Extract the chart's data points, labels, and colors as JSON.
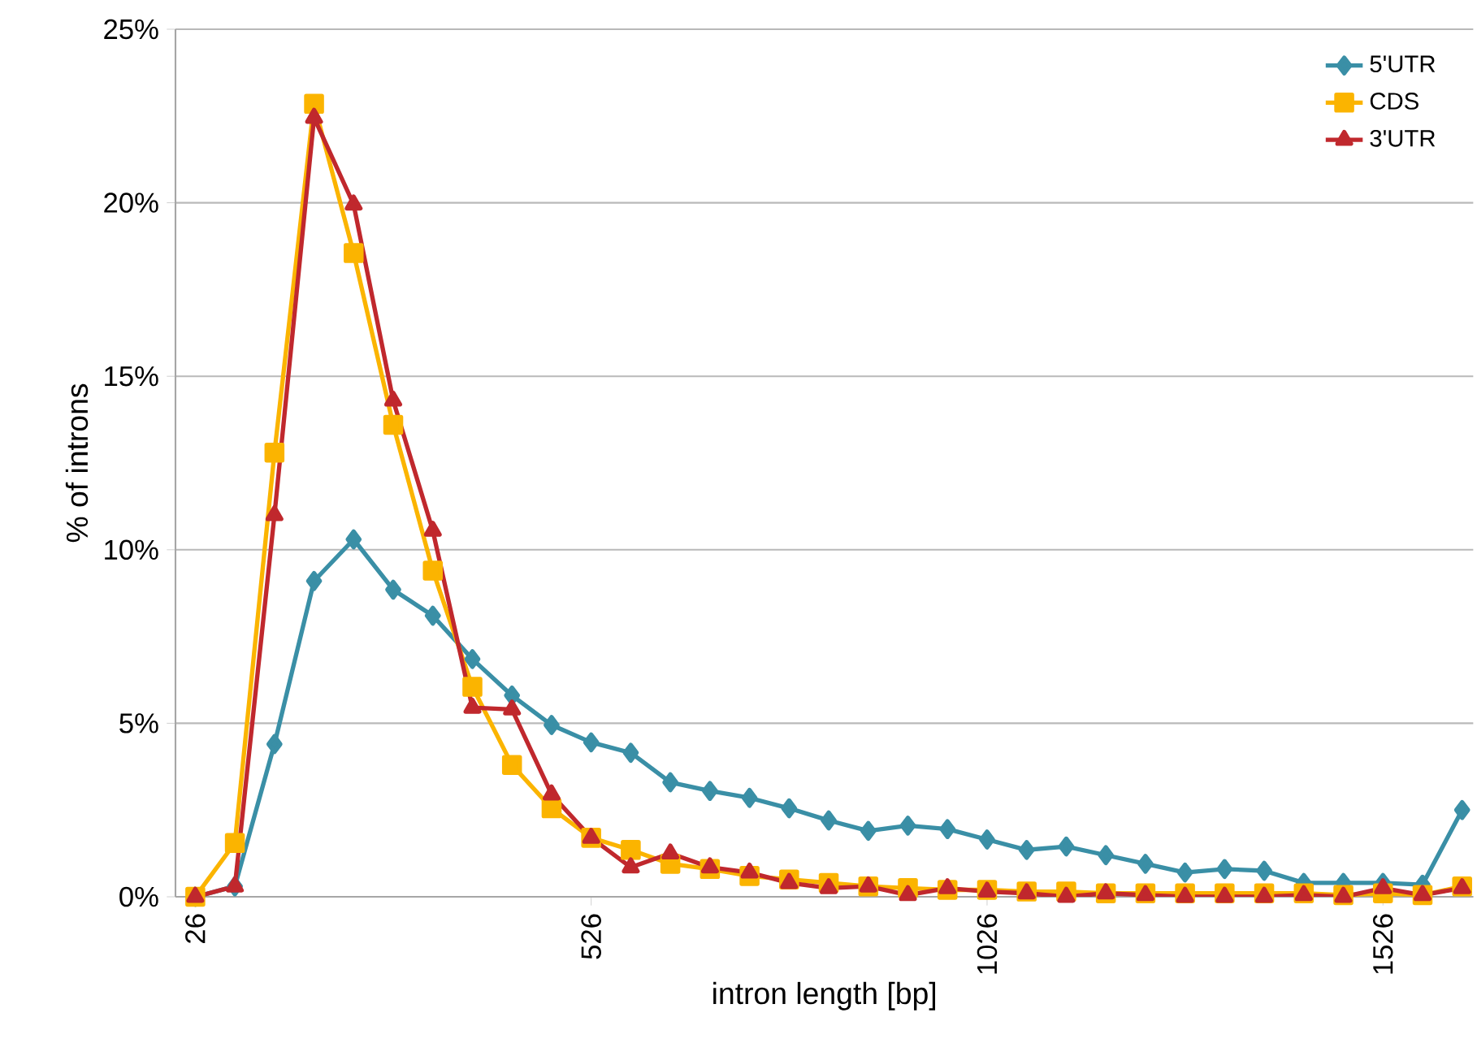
{
  "chart_data": {
    "type": "line",
    "xlabel": "intron length [bp]",
    "ylabel": "% of introns",
    "x": [
      26,
      76,
      126,
      176,
      226,
      276,
      326,
      376,
      426,
      476,
      526,
      576,
      626,
      676,
      726,
      776,
      826,
      876,
      926,
      976,
      1026,
      1076,
      1126,
      1176,
      1226,
      1276,
      1326,
      1376,
      1426,
      1476,
      1526,
      1576,
      1626
    ],
    "xlim": [
      1,
      1640
    ],
    "xticks": [
      26,
      526,
      1026,
      1526
    ],
    "ylim": [
      0,
      25
    ],
    "yticks": [
      {
        "value": 0,
        "label": "0%"
      },
      {
        "value": 5,
        "label": "5%"
      },
      {
        "value": 10,
        "label": "10%"
      },
      {
        "value": 15,
        "label": "15%"
      },
      {
        "value": 20,
        "label": "20%"
      },
      {
        "value": 25,
        "label": "25%"
      }
    ],
    "grid": "y",
    "legend": "top right",
    "line_style": "solid",
    "series": [
      {
        "name": "5'UTR",
        "color": "#3a8fa6",
        "marker": "diamond",
        "values": [
          0,
          0.3,
          4.4,
          9.1,
          10.3,
          8.85,
          8.1,
          6.85,
          5.8,
          4.95,
          4.45,
          4.15,
          3.3,
          3.05,
          2.85,
          2.55,
          2.2,
          1.9,
          2.05,
          1.95,
          1.65,
          1.35,
          1.45,
          1.2,
          0.95,
          0.7,
          0.8,
          0.75,
          0.4,
          0.4,
          0.4,
          0.35,
          2.5
        ]
      },
      {
        "name": "CDS",
        "color": "#fbb400",
        "marker": "square",
        "values": [
          0,
          1.55,
          12.8,
          22.85,
          18.55,
          13.6,
          9.4,
          6.05,
          3.8,
          2.55,
          1.7,
          1.35,
          0.95,
          0.8,
          0.6,
          0.5,
          0.4,
          0.3,
          0.25,
          0.2,
          0.2,
          0.15,
          0.15,
          0.1,
          0.1,
          0.1,
          0.1,
          0.1,
          0.1,
          0.05,
          0.1,
          0.05,
          0.3
        ]
      },
      {
        "name": "3'UTR",
        "color": "#c0282d",
        "marker": "triangle",
        "values": [
          0,
          0.3,
          11.0,
          22.45,
          19.95,
          14.3,
          10.55,
          5.45,
          5.4,
          2.95,
          1.7,
          0.85,
          1.25,
          0.85,
          0.7,
          0.4,
          0.25,
          0.3,
          0.05,
          0.25,
          0.15,
          0.1,
          0.0,
          0.1,
          0.05,
          0.0,
          0.0,
          0.0,
          0.05,
          0.0,
          0.25,
          0.05,
          0.25
        ]
      }
    ]
  }
}
